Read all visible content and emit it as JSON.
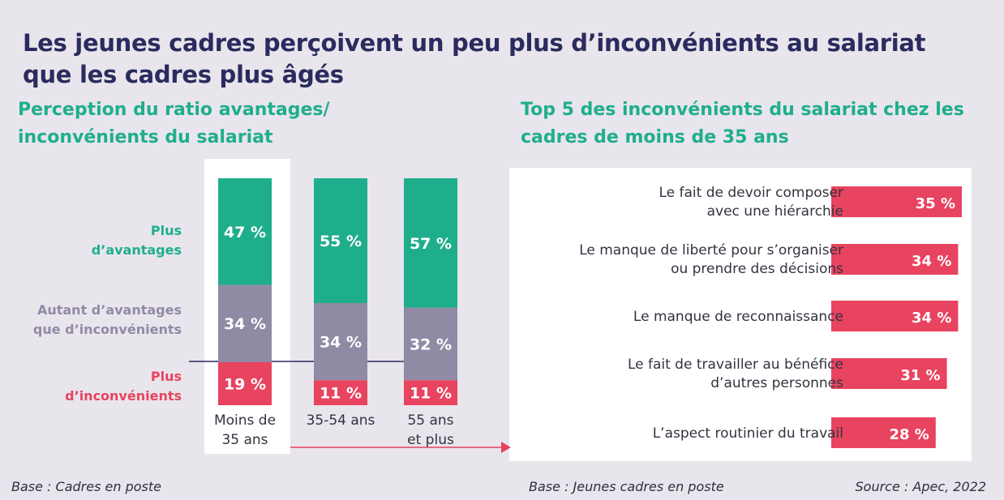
{
  "header": {
    "title": "Les jeunes cadres perçoivent un peu plus d’inconvénients au salariat que les cadres plus âgés"
  },
  "left_panel": {
    "subtitle": "Perception du ratio avantages/ inconvénients du salariat",
    "base": "Base : Cadres en poste"
  },
  "right_panel": {
    "subtitle": "Top 5 des inconvénients du salariat chez les cadres de moins de 35 ans",
    "base": "Base : Jeunes cadres en poste"
  },
  "footer": {
    "source": "Source : Apec, 2022"
  },
  "colors": {
    "avantages": "#1fae8c",
    "autant": "#908aa5",
    "inconvenients": "#e8435f",
    "title": "#2a2b5e",
    "highlight_panel": "#ffffff",
    "background": "#e9e5ec"
  },
  "chart_data": [
    {
      "type": "bar",
      "stacked": true,
      "categories": [
        [
          "Moins de",
          "35 ans"
        ],
        [
          "35-54 ans"
        ],
        [
          "55 ans",
          "et plus"
        ]
      ],
      "series": [
        {
          "name": [
            "Plus",
            "d’inconvénients"
          ],
          "values": [
            19,
            11,
            11
          ],
          "labels": [
            "19 %",
            "11 %",
            "11 %"
          ],
          "color": "#e8435f"
        },
        {
          "name": [
            "Autant d’avantages",
            "que d’inconvénients"
          ],
          "values": [
            34,
            34,
            32
          ],
          "labels": [
            "34 %",
            "34 %",
            "32 %"
          ],
          "color": "#908aa5"
        },
        {
          "name": [
            "Plus",
            "d’avantages"
          ],
          "values": [
            47,
            55,
            57
          ],
          "labels": [
            "47 %",
            "55 %",
            "57 %"
          ],
          "color": "#1fae8c"
        }
      ],
      "legend": "left",
      "highlighted_category": 0
    },
    {
      "type": "bar",
      "orientation": "horizontal",
      "categories": [
        [
          "Le fait de devoir composer",
          "avec une hiérarchie"
        ],
        [
          "Le manque de liberté pour s’organiser",
          "ou prendre des décisions"
        ],
        [
          "Le manque de reconnaissance"
        ],
        [
          "Le fait de travailler au bénéfice",
          "d’autres personnes"
        ],
        [
          "L’aspect routinier du travail"
        ]
      ],
      "values": [
        35,
        34,
        34,
        31,
        28
      ],
      "labels": [
        "35 %",
        "34 %",
        "34 %",
        "31 %",
        "28 %"
      ],
      "color": "#e8435f"
    }
  ]
}
